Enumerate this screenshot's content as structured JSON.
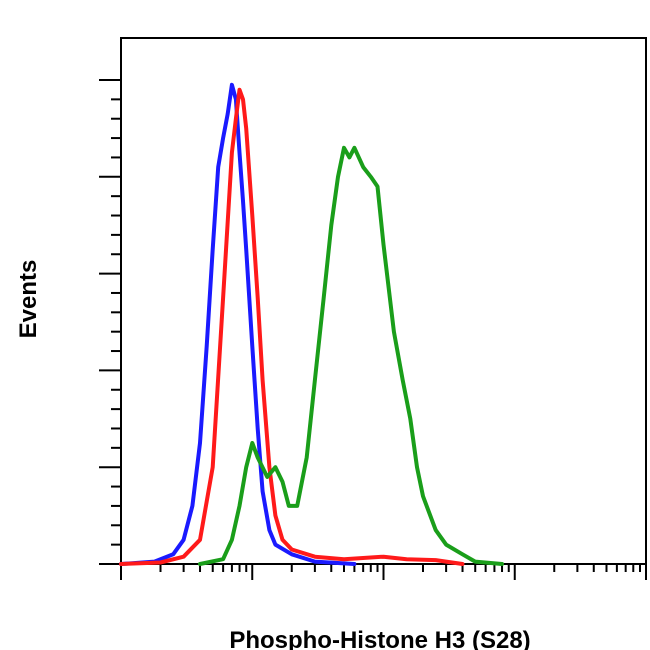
{
  "chart_data": {
    "type": "line",
    "title": "",
    "xlabel": "Phospho-Histone H3 (S28)",
    "ylabel": "Events",
    "x_scale": "log",
    "xlim": [
      0.1,
      1000
    ],
    "ylim": [
      0,
      100
    ],
    "grid": false,
    "legend": "none",
    "series": [
      {
        "color": "#1a1aff",
        "points": [
          [
            0.1,
            0
          ],
          [
            0.18,
            0.5
          ],
          [
            0.25,
            2
          ],
          [
            0.3,
            5
          ],
          [
            0.35,
            12
          ],
          [
            0.4,
            25
          ],
          [
            0.45,
            45
          ],
          [
            0.5,
            65
          ],
          [
            0.55,
            82
          ],
          [
            0.6,
            88
          ],
          [
            0.65,
            93
          ],
          [
            0.7,
            99
          ],
          [
            0.75,
            96
          ],
          [
            0.8,
            85
          ],
          [
            0.85,
            75
          ],
          [
            0.9,
            65
          ],
          [
            1.0,
            45
          ],
          [
            1.1,
            28
          ],
          [
            1.2,
            15
          ],
          [
            1.35,
            7
          ],
          [
            1.5,
            4
          ],
          [
            2.0,
            2
          ],
          [
            3.0,
            0.5
          ],
          [
            6.0,
            0
          ]
        ]
      },
      {
        "color": "#ff1a1a",
        "points": [
          [
            0.1,
            0
          ],
          [
            0.2,
            0.3
          ],
          [
            0.3,
            1.5
          ],
          [
            0.4,
            5
          ],
          [
            0.5,
            20
          ],
          [
            0.6,
            55
          ],
          [
            0.7,
            85
          ],
          [
            0.75,
            92
          ],
          [
            0.8,
            98
          ],
          [
            0.85,
            96
          ],
          [
            0.9,
            90
          ],
          [
            1.0,
            72
          ],
          [
            1.1,
            55
          ],
          [
            1.2,
            38
          ],
          [
            1.35,
            20
          ],
          [
            1.5,
            10
          ],
          [
            1.7,
            5
          ],
          [
            2.0,
            3
          ],
          [
            3.0,
            1.5
          ],
          [
            5.0,
            1
          ],
          [
            10.0,
            1.5
          ],
          [
            15.0,
            1
          ],
          [
            25.0,
            0.8
          ],
          [
            40.0,
            0
          ]
        ]
      },
      {
        "color": "#1a9e1a",
        "points": [
          [
            0.4,
            0
          ],
          [
            0.6,
            1
          ],
          [
            0.7,
            5
          ],
          [
            0.8,
            12
          ],
          [
            0.9,
            20
          ],
          [
            1.0,
            25
          ],
          [
            1.1,
            22
          ],
          [
            1.3,
            18
          ],
          [
            1.5,
            20
          ],
          [
            1.7,
            17
          ],
          [
            1.9,
            12
          ],
          [
            2.2,
            12
          ],
          [
            2.6,
            22
          ],
          [
            3.0,
            38
          ],
          [
            3.5,
            55
          ],
          [
            4.0,
            70
          ],
          [
            4.5,
            80
          ],
          [
            5.0,
            86
          ],
          [
            5.5,
            84
          ],
          [
            6.0,
            86
          ],
          [
            7.0,
            82
          ],
          [
            8.0,
            80
          ],
          [
            9.0,
            78
          ],
          [
            10.0,
            66
          ],
          [
            12.0,
            48
          ],
          [
            14.0,
            38
          ],
          [
            16.0,
            30
          ],
          [
            18.0,
            20
          ],
          [
            20.0,
            14
          ],
          [
            25.0,
            7
          ],
          [
            30.0,
            4
          ],
          [
            40.0,
            2
          ],
          [
            50.0,
            0.5
          ],
          [
            80.0,
            0
          ]
        ]
      }
    ]
  }
}
